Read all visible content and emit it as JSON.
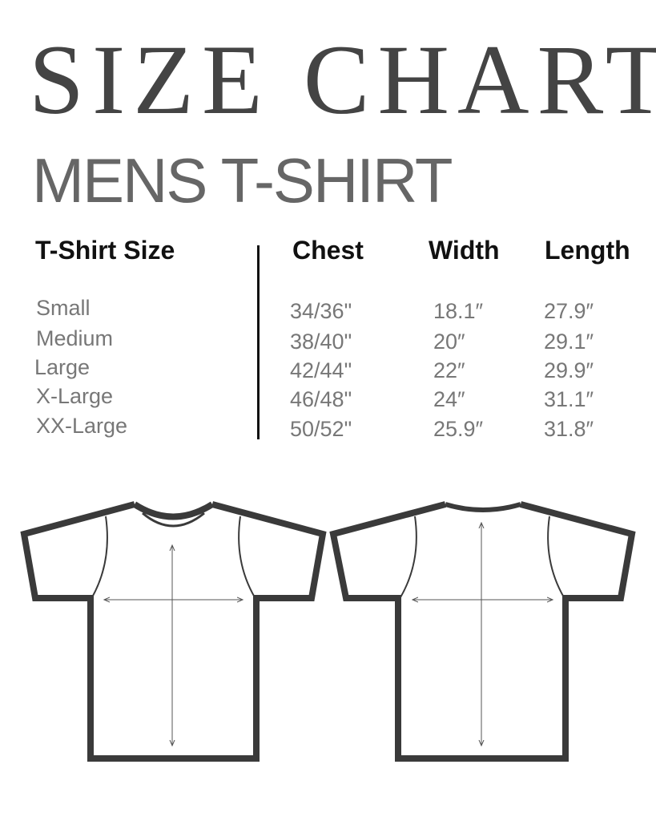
{
  "title": "SIZE CHART",
  "subtitle": "MENS T-SHIRT",
  "table": {
    "headers": [
      "T-Shirt Size",
      "Chest",
      "Width",
      "Length"
    ],
    "rows": [
      [
        "Small",
        "34/36\"",
        "18.1″",
        "27.9″"
      ],
      [
        "Medium",
        "38/40\"",
        "20″",
        "29.1″"
      ],
      [
        "Large",
        "42/44\"",
        "22″",
        "29.9″"
      ],
      [
        "X-Large",
        "46/48\"",
        "24″",
        "31.1″"
      ],
      [
        "XX-Large",
        "50/52\"",
        "25.9″",
        "31.8″"
      ]
    ]
  },
  "colors": {
    "title": "#444444",
    "subtitle": "#666666",
    "values": "#777777",
    "outline": "#3a3a3a"
  }
}
